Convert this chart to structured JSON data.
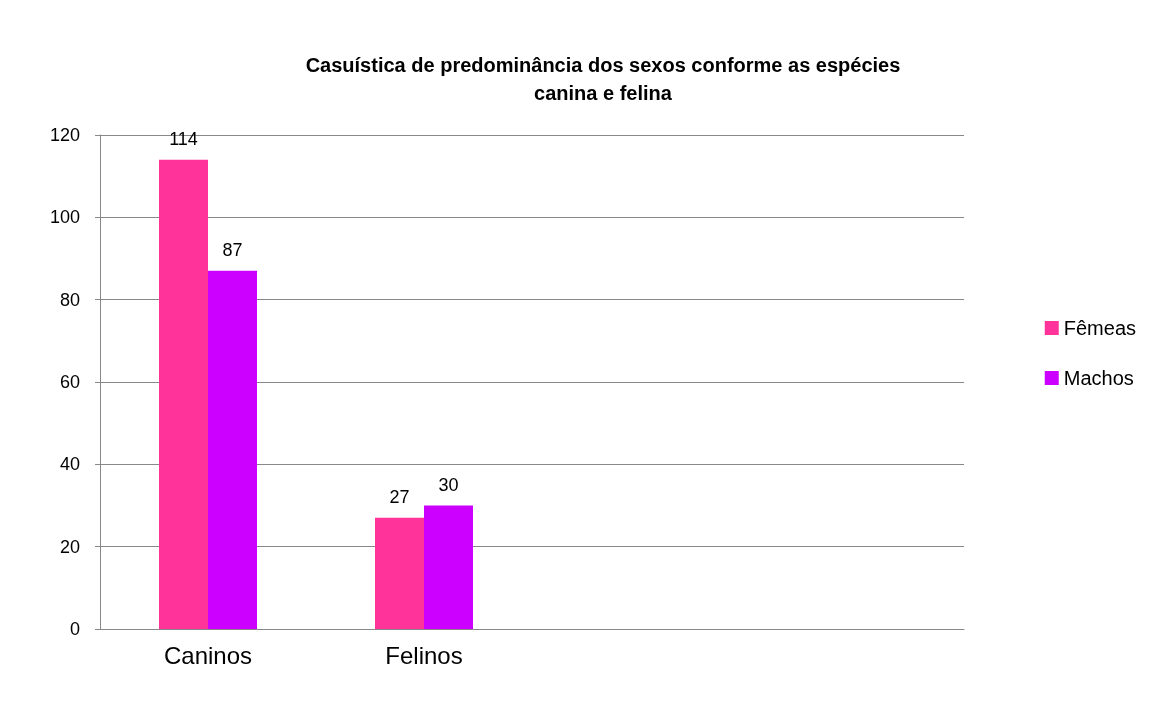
{
  "chart_data": {
    "type": "bar",
    "title": "Casuística de predominância dos sexos conforme as espécies\ncanina e felina",
    "categories": [
      "Caninos",
      "Felinos",
      null,
      null
    ],
    "series": [
      {
        "name": "Fêmeas",
        "color": "#ff3399",
        "values": [
          114,
          27,
          null,
          null
        ]
      },
      {
        "name": "Machos",
        "color": "#cc00ff",
        "values": [
          87,
          30,
          null,
          null
        ]
      }
    ],
    "ylim": [
      0,
      120
    ],
    "yticks": [
      0,
      20,
      40,
      60,
      80,
      100,
      120
    ],
    "grid": "y",
    "legend": "right",
    "data_labels": true
  }
}
